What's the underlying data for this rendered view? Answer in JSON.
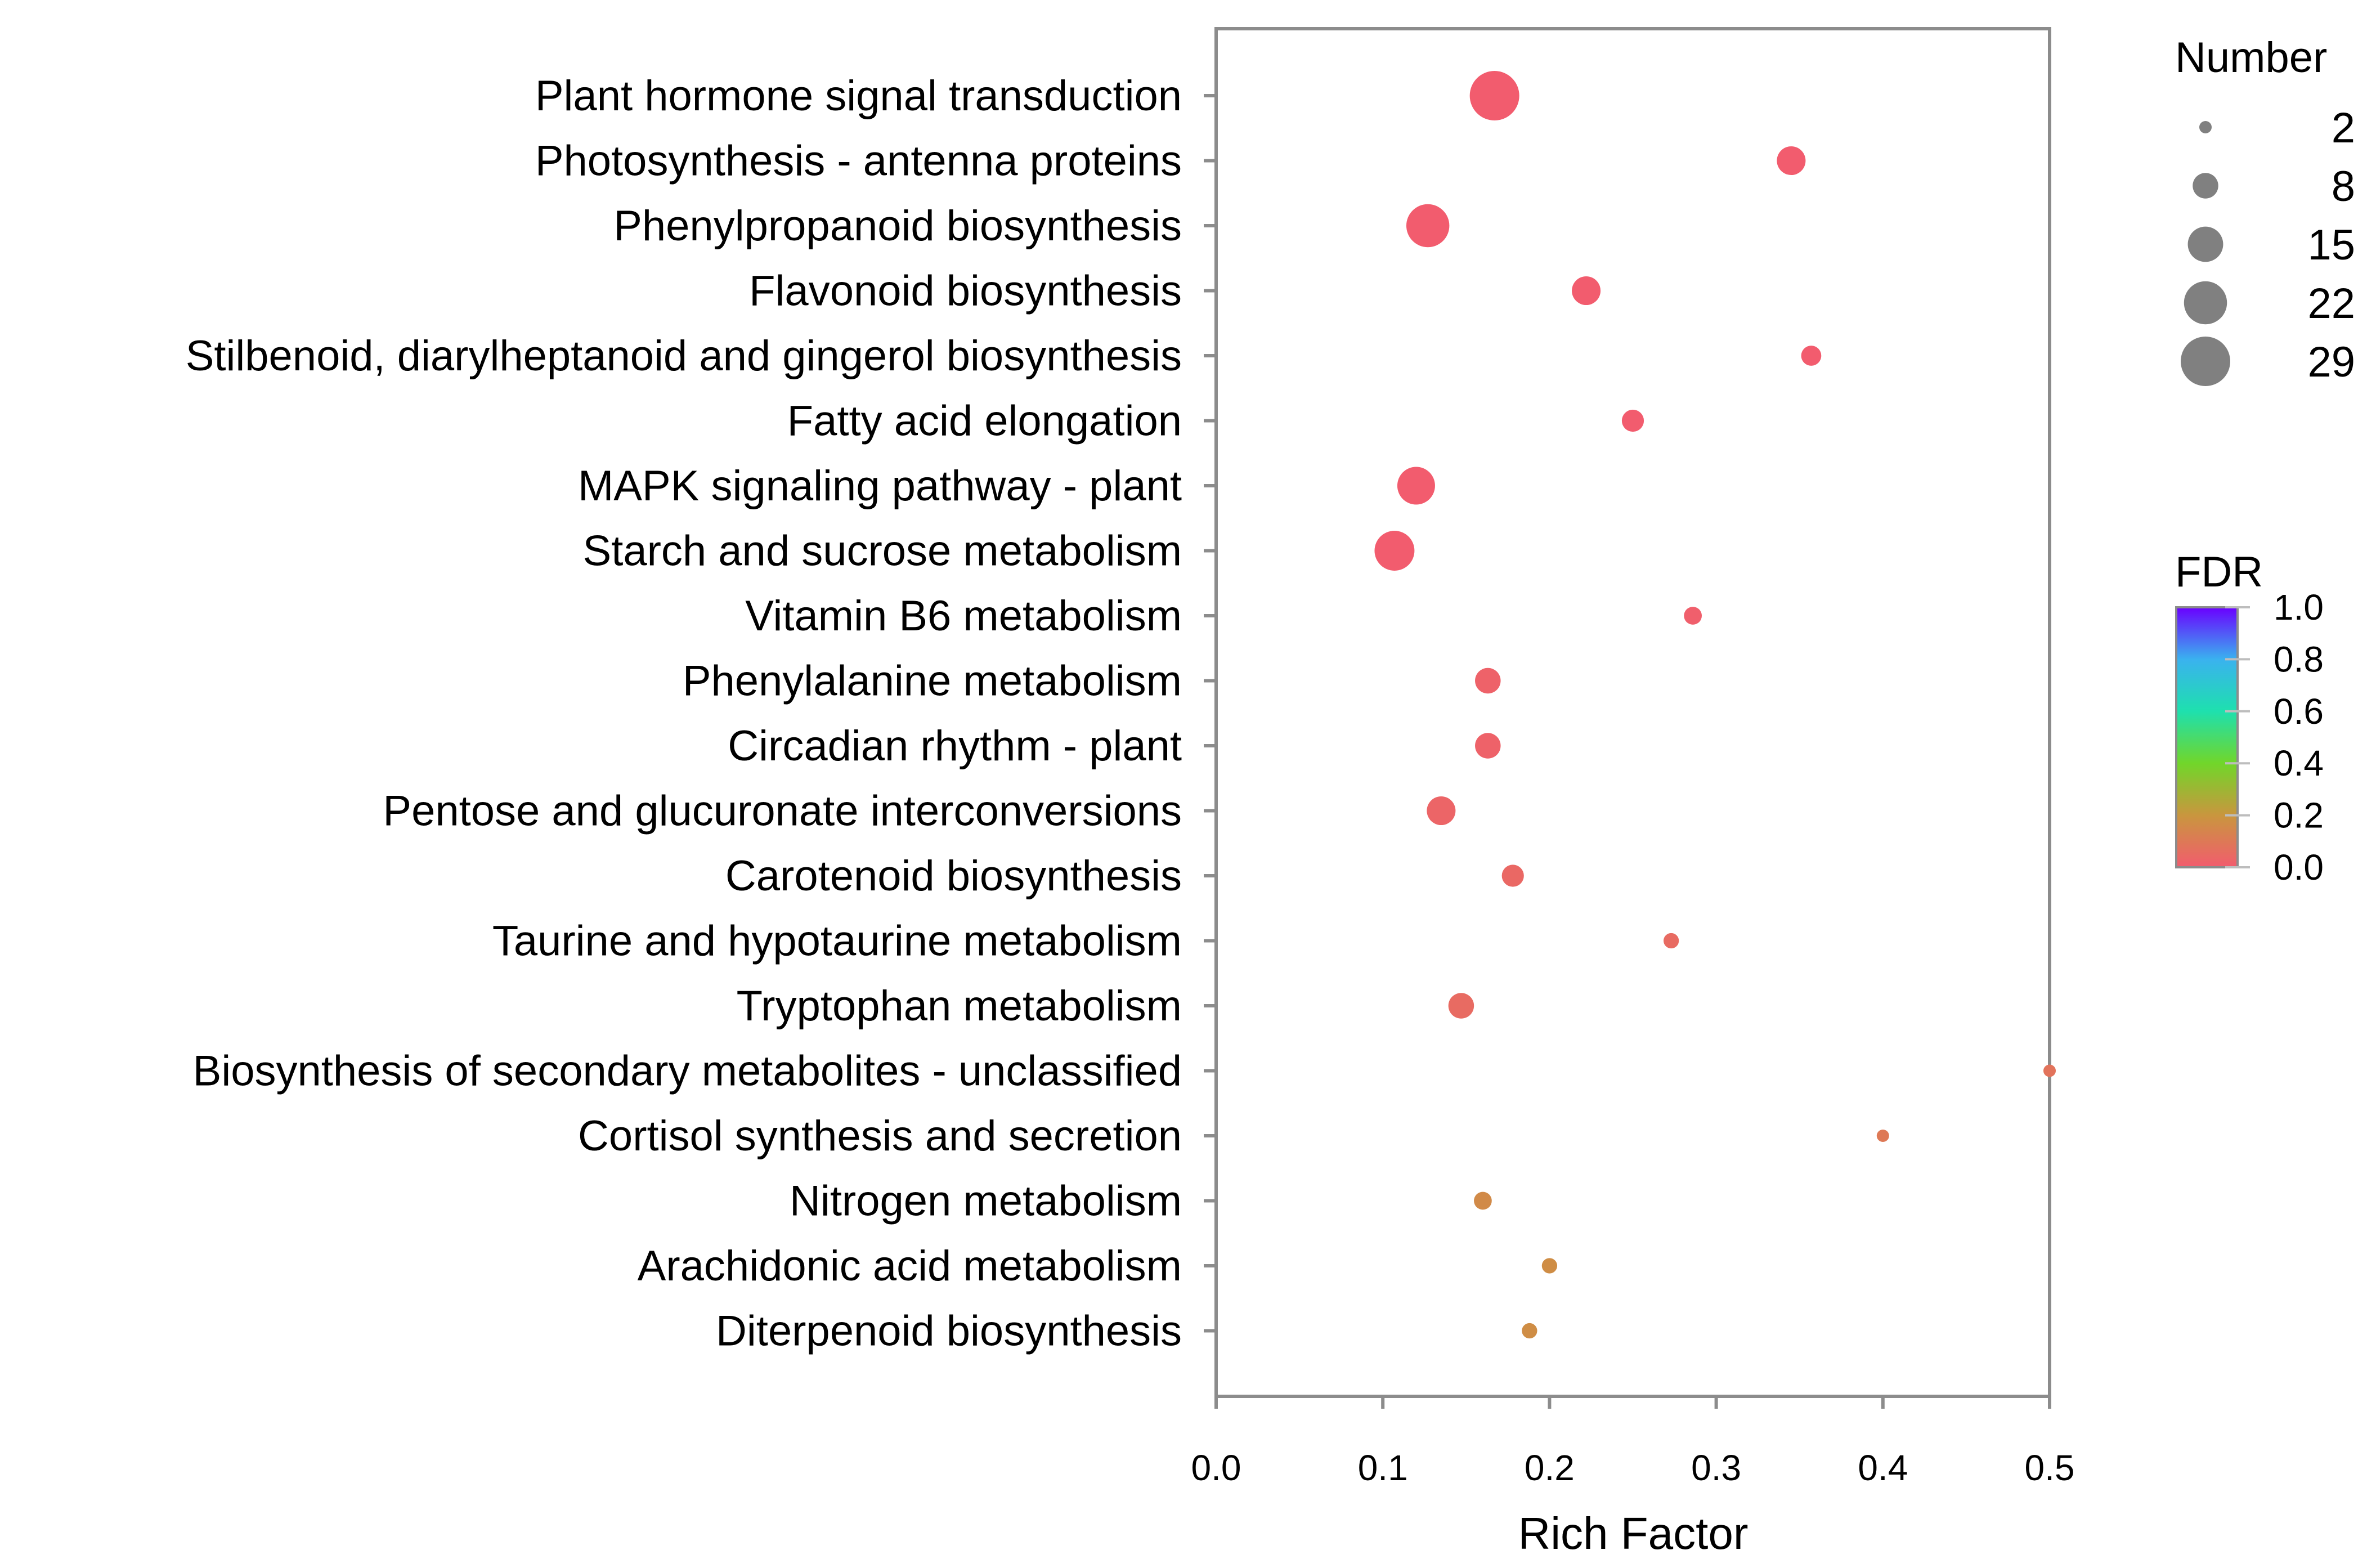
{
  "chart_data": {
    "type": "scatter",
    "title": "",
    "xlabel": "Rich Factor",
    "ylabel": "",
    "xlim": [
      0.0,
      0.5
    ],
    "xticks": [
      0.0,
      0.1,
      0.2,
      0.3,
      0.4,
      0.5
    ],
    "xtick_labels": [
      "0.0",
      "0.1",
      "0.2",
      "0.3",
      "0.4",
      "0.5"
    ],
    "grid": false,
    "points": [
      {
        "pathway": "Plant hormone signal transduction",
        "rich_factor": 0.167,
        "number": 29,
        "fdr": 0.0
      },
      {
        "pathway": "Photosynthesis - antenna proteins",
        "rich_factor": 0.345,
        "number": 10,
        "fdr": 0.0
      },
      {
        "pathway": "Phenylpropanoid biosynthesis",
        "rich_factor": 0.127,
        "number": 22,
        "fdr": 0.0
      },
      {
        "pathway": "Flavonoid biosynthesis",
        "rich_factor": 0.222,
        "number": 10,
        "fdr": 0.0
      },
      {
        "pathway": "Stilbenoid, diarylheptanoid and gingerol biosynthesis",
        "rich_factor": 0.357,
        "number": 5,
        "fdr": 0.0
      },
      {
        "pathway": "Fatty acid elongation",
        "rich_factor": 0.25,
        "number": 6,
        "fdr": 0.0
      },
      {
        "pathway": "MAPK signaling pathway - plant",
        "rich_factor": 0.12,
        "number": 17,
        "fdr": 0.0
      },
      {
        "pathway": "Starch and sucrose metabolism",
        "rich_factor": 0.107,
        "number": 19,
        "fdr": 0.0
      },
      {
        "pathway": "Vitamin B6 metabolism",
        "rich_factor": 0.286,
        "number": 4,
        "fdr": 0.01
      },
      {
        "pathway": "Phenylalanine metabolism",
        "rich_factor": 0.163,
        "number": 8,
        "fdr": 0.02
      },
      {
        "pathway": "Circadian rhythm - plant",
        "rich_factor": 0.163,
        "number": 8,
        "fdr": 0.02
      },
      {
        "pathway": "Pentose and glucuronate interconversions",
        "rich_factor": 0.135,
        "number": 10,
        "fdr": 0.03
      },
      {
        "pathway": "Carotenoid biosynthesis",
        "rich_factor": 0.178,
        "number": 6,
        "fdr": 0.04
      },
      {
        "pathway": "Taurine and hypotaurine metabolism",
        "rich_factor": 0.273,
        "number": 3,
        "fdr": 0.05
      },
      {
        "pathway": "Tryptophan metabolism",
        "rich_factor": 0.147,
        "number": 8,
        "fdr": 0.05
      },
      {
        "pathway": "Biosynthesis of secondary metabolites - unclassified",
        "rich_factor": 0.5,
        "number": 2,
        "fdr": 0.08
      },
      {
        "pathway": "Cortisol synthesis and secretion",
        "rich_factor": 0.4,
        "number": 2,
        "fdr": 0.1
      },
      {
        "pathway": "Nitrogen metabolism",
        "rich_factor": 0.16,
        "number": 4,
        "fdr": 0.16
      },
      {
        "pathway": "Arachidonic acid metabolism",
        "rich_factor": 0.2,
        "number": 3,
        "fdr": 0.17
      },
      {
        "pathway": "Diterpenoid biosynthesis",
        "rich_factor": 0.188,
        "number": 3,
        "fdr": 0.17
      }
    ],
    "size_legend": {
      "title": "Number",
      "values": [
        2,
        8,
        15,
        22,
        29
      ],
      "labels": [
        "2",
        "8",
        "15",
        "22",
        "29"
      ]
    },
    "color_legend": {
      "title": "FDR",
      "range": [
        0.0,
        1.0
      ],
      "ticks": [
        1.0,
        0.8,
        0.6,
        0.4,
        0.2,
        0.0
      ],
      "tick_labels": [
        "1.0",
        "0.8",
        "0.6",
        "0.4",
        "0.2",
        "0.0"
      ],
      "stops": [
        "#f25c6e",
        "#c9963e",
        "#71d62a",
        "#1ee0ae",
        "#3ab2ef",
        "#6a00ff"
      ]
    }
  }
}
